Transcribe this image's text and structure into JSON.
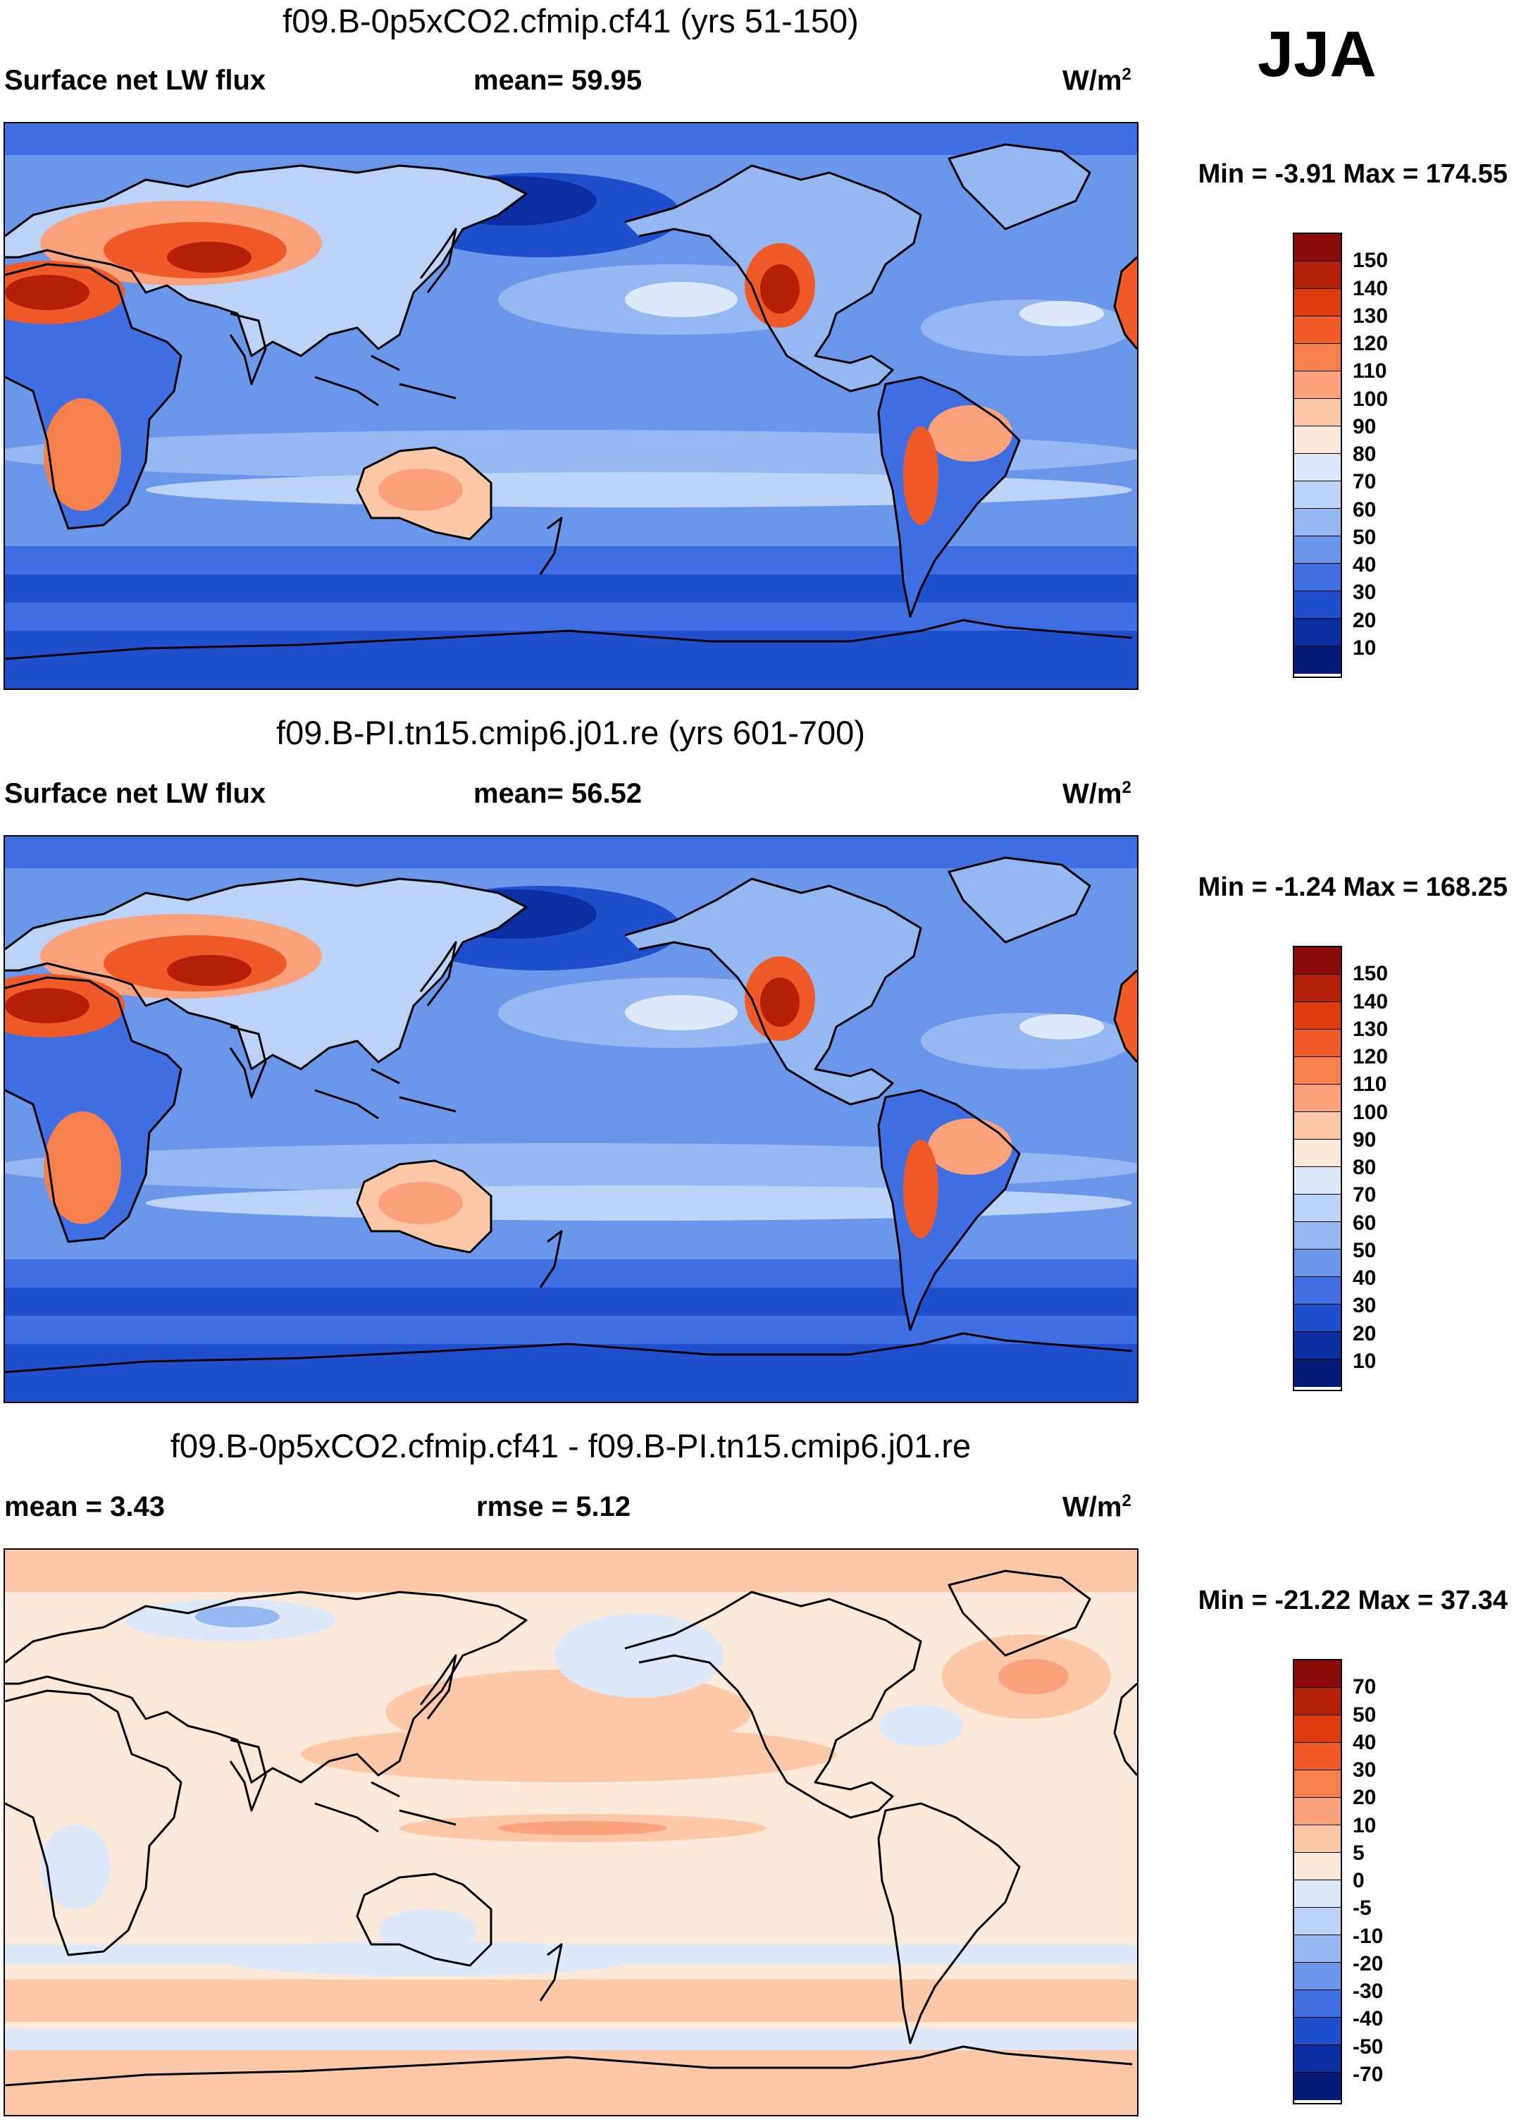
{
  "season": "JJA",
  "units_label": "W/m",
  "units_superscript": "2",
  "panels": [
    {
      "title": "f09.B-0p5xCO2.cfmip.cf41 (yrs 51-150)",
      "left_label": "Surface net LW flux",
      "mid_label": "mean=  59.95",
      "minmax": "Min =  -3.91 Max = 174.55",
      "scheme": "abs"
    },
    {
      "title": "f09.B-PI.tn15.cmip6.j01.re (yrs 601-700)",
      "left_label": "Surface net LW flux",
      "mid_label": "mean=  56.52",
      "minmax": "Min =  -1.24 Max = 168.25",
      "scheme": "abs"
    },
    {
      "title": "f09.B-0p5xCO2.cfmip.cf41 - f09.B-PI.tn15.cmip6.j01.re",
      "left_label": "mean =   3.43",
      "mid_label": "rmse =   5.12",
      "minmax": "Min = -21.22 Max =  37.34",
      "scheme": "diff"
    }
  ],
  "colorbars": {
    "abs": {
      "levels": [
        "150",
        "140",
        "130",
        "120",
        "110",
        "100",
        "90",
        "80",
        "70",
        "60",
        "50",
        "40",
        "30",
        "20",
        "10"
      ],
      "colors": [
        "#8b0a0a",
        "#b52008",
        "#dd3a10",
        "#f05a28",
        "#f7804f",
        "#fba27c",
        "#fdc8a8",
        "#fde9d9",
        "#dde9fb",
        "#bcd3f7",
        "#95b7f2",
        "#6a97ea",
        "#3f6fe2",
        "#1f4fcc",
        "#0b2ea0",
        "#061c78"
      ]
    },
    "diff": {
      "levels": [
        "70",
        "50",
        "40",
        "30",
        "20",
        "10",
        "5",
        "0",
        "-5",
        "-10",
        "-20",
        "-30",
        "-40",
        "-50",
        "-70"
      ],
      "colors": [
        "#8b0a0a",
        "#b52008",
        "#dd3a10",
        "#f05a28",
        "#f7804f",
        "#fba27c",
        "#fdc8a8",
        "#fde9d9",
        "#dde9fb",
        "#bcd3f7",
        "#95b7f2",
        "#6a97ea",
        "#3f6fe2",
        "#1f4fcc",
        "#0b2ea0",
        "#061c78"
      ]
    }
  }
}
